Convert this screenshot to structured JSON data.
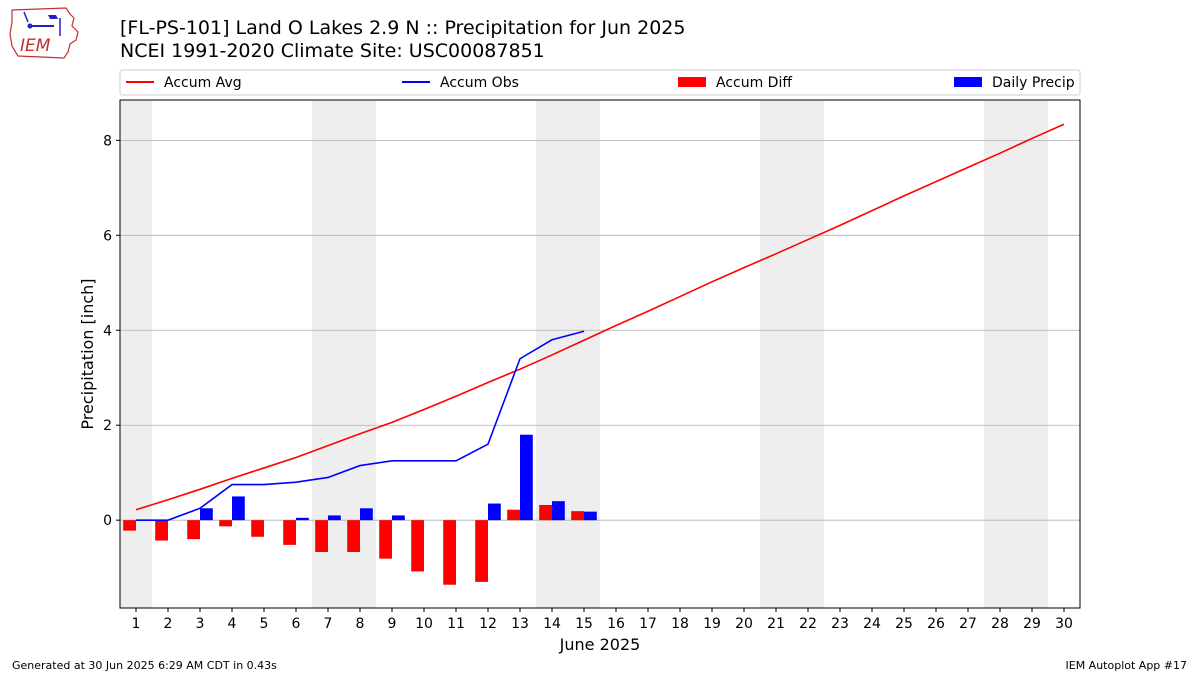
{
  "header": {
    "title_line1": "[FL-PS-101] Land O  Lakes 2.9 N :: Precipitation for Jun 2025",
    "title_line2": "NCEI 1991-2020 Climate Site: USC00087851"
  },
  "logo": {
    "text": "IEM",
    "icon": "iem-iowa-logo"
  },
  "footer": {
    "generated": "Generated at 30 Jun 2025 6:29 AM CDT in 0.43s",
    "app": "IEM Autoplot App #17"
  },
  "colors": {
    "accum_avg": "#ff0000",
    "accum_obs": "#0000ff",
    "accum_diff": "#ff0000",
    "daily_precip": "#0000ff",
    "weekend_shade": "#eeeeee",
    "grid": "#b0b0b0"
  },
  "chart_data": {
    "type": "bar",
    "xlabel": "June 2025",
    "ylabel": "Precipitation [inch]",
    "ylim": [
      -1.85,
      8.85
    ],
    "yticks": [
      0,
      2,
      4,
      6,
      8
    ],
    "xlim": [
      0.5,
      30.5
    ],
    "days": [
      1,
      2,
      3,
      4,
      5,
      6,
      7,
      8,
      9,
      10,
      11,
      12,
      13,
      14,
      15,
      16,
      17,
      18,
      19,
      20,
      21,
      22,
      23,
      24,
      25,
      26,
      27,
      28,
      29,
      30
    ],
    "weekend_days": [
      1,
      7,
      8,
      14,
      15,
      21,
      22,
      28,
      29
    ],
    "grid": "horizontal",
    "legend_position": "top",
    "series": [
      {
        "name": "Accum Avg",
        "kind": "line",
        "x": [
          1,
          2,
          3,
          4,
          5,
          6,
          7,
          8,
          9,
          10,
          11,
          12,
          13,
          14,
          15,
          16,
          17,
          18,
          19,
          20,
          21,
          22,
          23,
          24,
          25,
          26,
          27,
          28,
          29,
          30
        ],
        "values": [
          0.22,
          0.43,
          0.65,
          0.88,
          1.1,
          1.32,
          1.57,
          1.82,
          2.06,
          2.33,
          2.61,
          2.9,
          3.18,
          3.48,
          3.79,
          4.1,
          4.4,
          4.71,
          5.02,
          5.32,
          5.61,
          5.91,
          6.21,
          6.52,
          6.83,
          7.13,
          7.43,
          7.73,
          8.04,
          8.34
        ]
      },
      {
        "name": "Accum Obs",
        "kind": "line",
        "x": [
          1,
          2,
          3,
          4,
          5,
          6,
          7,
          8,
          9,
          10,
          11,
          12,
          13,
          14,
          15
        ],
        "values": [
          0.0,
          0.0,
          0.25,
          0.75,
          0.75,
          0.8,
          0.9,
          1.15,
          1.25,
          1.25,
          1.25,
          1.6,
          3.4,
          3.8,
          3.98
        ]
      },
      {
        "name": "Accum Diff",
        "kind": "bar",
        "x": [
          1,
          2,
          3,
          4,
          5,
          6,
          7,
          8,
          9,
          10,
          11,
          12,
          13,
          14,
          15
        ],
        "values": [
          -0.22,
          -0.43,
          -0.4,
          -0.13,
          -0.35,
          -0.52,
          -0.67,
          -0.67,
          -0.81,
          -1.08,
          -1.36,
          -1.3,
          0.22,
          0.32,
          0.19
        ]
      },
      {
        "name": "Daily Precip",
        "kind": "bar",
        "x": [
          1,
          2,
          3,
          4,
          5,
          6,
          7,
          8,
          9,
          10,
          11,
          12,
          13,
          14,
          15
        ],
        "values": [
          0,
          0,
          0.25,
          0.5,
          0,
          0.05,
          0.1,
          0.25,
          0.1,
          0,
          0,
          0.35,
          1.8,
          0.4,
          0.18
        ]
      }
    ]
  }
}
